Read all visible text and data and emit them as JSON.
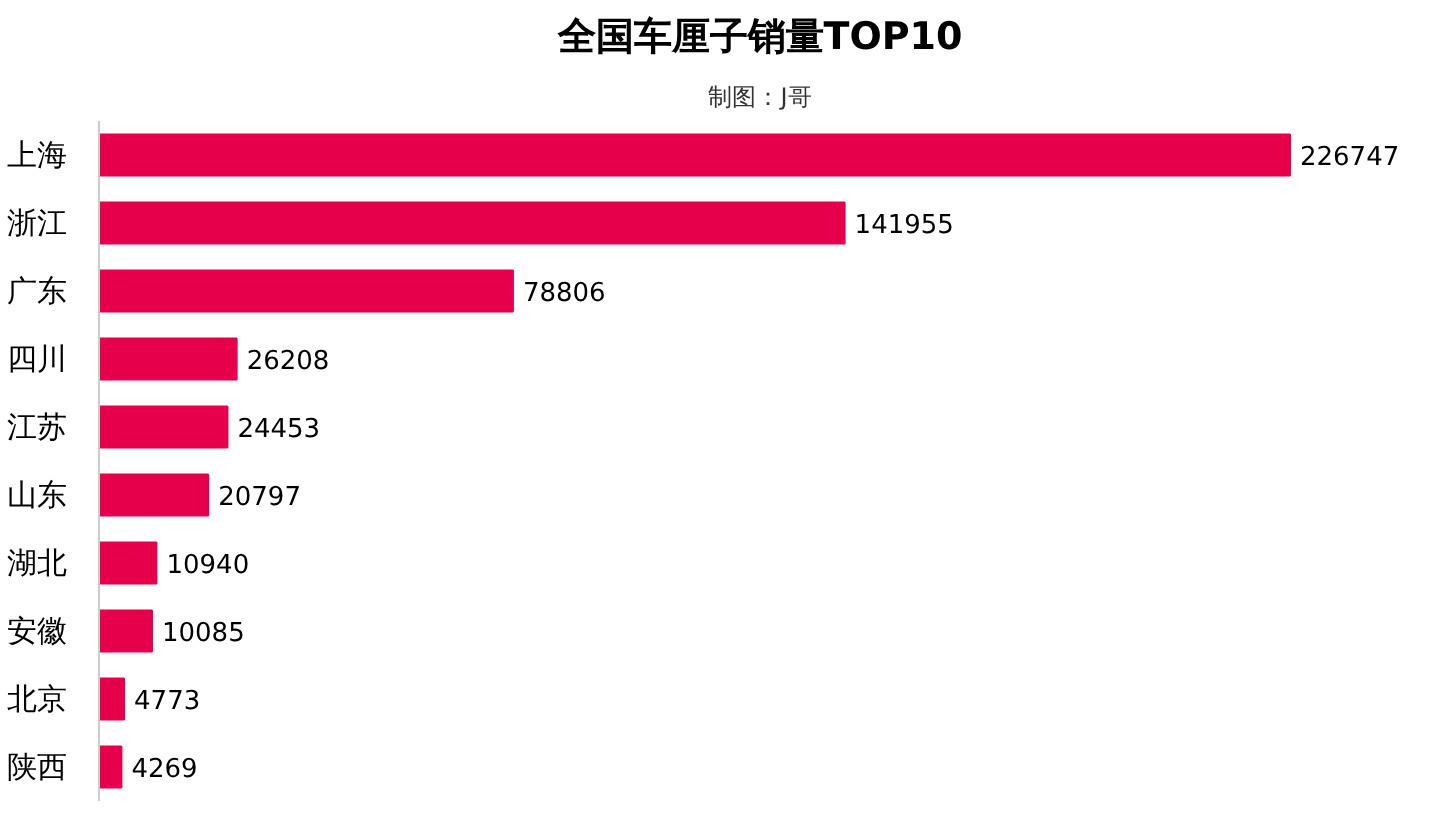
{
  "chart_data": {
    "type": "bar",
    "orientation": "horizontal",
    "title": "全国车厘子销量TOP10",
    "subtitle": "制图：J哥",
    "categories": [
      "上海",
      "浙江",
      "广东",
      "四川",
      "江苏",
      "山东",
      "湖北",
      "安徽",
      "北京",
      "陕西"
    ],
    "values": [
      226747,
      141955,
      78806,
      26208,
      24453,
      20797,
      10940,
      10085,
      4773,
      4269
    ],
    "color": "#e6004c",
    "data_labels": true
  }
}
